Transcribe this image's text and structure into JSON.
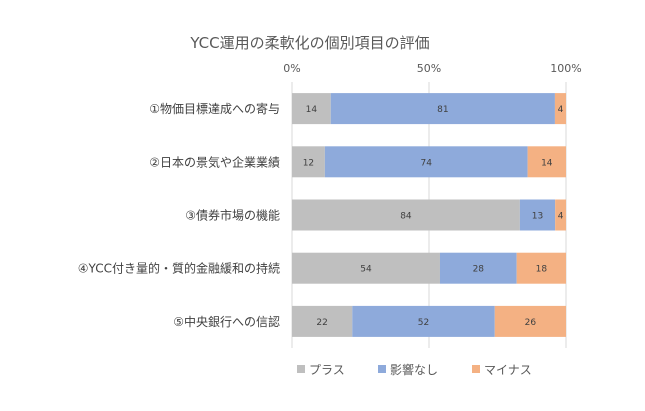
{
  "chart_data": {
    "type": "bar",
    "orientation": "horizontal",
    "stacked": "percent",
    "title": "YCC運用の柔軟化の個別項目の評価",
    "xlim": [
      0,
      100
    ],
    "x_ticks": [
      "0%",
      "50%",
      "100%"
    ],
    "x_tick_values": [
      0,
      50,
      100
    ],
    "grid": true,
    "legend_position": "bottom",
    "categories": [
      "①物価目標達成への寄与",
      "②日本の景気や企業業績",
      "③債券市場の機能",
      "④YCC付き量的・質的金融緩和の持続",
      "⑤中央銀行への信認"
    ],
    "series": [
      {
        "name": "プラス",
        "color": "#bfbfbf",
        "values": [
          14,
          12,
          84,
          54,
          22
        ]
      },
      {
        "name": "影響なし",
        "color": "#8eaadb",
        "values": [
          81,
          74,
          13,
          28,
          52
        ]
      },
      {
        "name": "マイナス",
        "color": "#f4b183",
        "values": [
          4,
          14,
          4,
          18,
          26
        ]
      }
    ]
  }
}
